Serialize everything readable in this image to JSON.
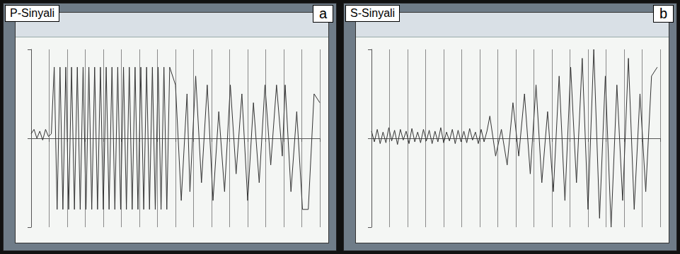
{
  "chart_data": [
    {
      "type": "line",
      "title": "P-Sinyali",
      "annotations": [
        "a"
      ],
      "color": "#333333",
      "grid": true,
      "tick_labels": false,
      "xlim": [
        0,
        100
      ],
      "xticks": [
        0,
        6.25,
        12.5,
        18.75,
        25,
        31.25,
        37.5,
        43.75,
        50,
        56.25,
        62.5,
        68.75,
        75,
        81.25,
        87.5,
        93.75,
        100
      ],
      "ylim": [
        -1,
        1
      ],
      "yticks": [
        -1,
        0,
        1
      ],
      "x": [
        0,
        1,
        2,
        3,
        4,
        5,
        6,
        7,
        8,
        9,
        10,
        11,
        12,
        13,
        14,
        15,
        16,
        17,
        18,
        19,
        20,
        21,
        22,
        23,
        24,
        25,
        26,
        27,
        28,
        29,
        30,
        31,
        32,
        33,
        34,
        35,
        36,
        37,
        38,
        39,
        40,
        41,
        42,
        43,
        44,
        45,
        46,
        47,
        48,
        50,
        52,
        54,
        55,
        57,
        59,
        61,
        63,
        65,
        67,
        69,
        71,
        73,
        75,
        77,
        79,
        81,
        83,
        85,
        87,
        88,
        90,
        92,
        94,
        96,
        98,
        100
      ],
      "values": [
        0.05,
        0.1,
        0,
        0.08,
        -0.02,
        0.1,
        0.02,
        0.05,
        0.8,
        -0.8,
        0.8,
        -0.8,
        0.8,
        -0.8,
        0.8,
        -0.8,
        0.8,
        -0.8,
        0.8,
        -0.8,
        0.8,
        -0.8,
        0.8,
        -0.8,
        0.8,
        -0.8,
        0.8,
        -0.8,
        0.8,
        -0.8,
        0.8,
        -0.8,
        0.8,
        -0.8,
        0.8,
        -0.8,
        0.8,
        -0.8,
        0.8,
        -0.8,
        0.8,
        -0.8,
        0.8,
        -0.8,
        0.8,
        -0.8,
        0.8,
        -0.8,
        0.8,
        0.6,
        -0.7,
        0.5,
        -0.6,
        0.7,
        -0.5,
        0.6,
        -0.7,
        0.3,
        -0.6,
        0.6,
        -0.4,
        0.5,
        -0.7,
        0.4,
        -0.5,
        0.6,
        -0.3,
        0.6,
        -0.2,
        0.6,
        -0.6,
        0.3,
        -0.8,
        -0.8,
        0.5,
        0.4
      ]
    },
    {
      "type": "line",
      "title": "S-Sinyali",
      "annotations": [
        "b"
      ],
      "color": "#333333",
      "grid": true,
      "tick_labels": false,
      "xlim": [
        0,
        100
      ],
      "xticks": [
        0,
        6.25,
        12.5,
        18.75,
        25,
        31.25,
        37.5,
        43.75,
        50,
        56.25,
        62.5,
        68.75,
        75,
        81.25,
        87.5,
        93.75,
        100
      ],
      "ylim": [
        -1,
        1
      ],
      "yticks": [
        -1,
        0,
        1
      ],
      "x": [
        0,
        1,
        2,
        3,
        4,
        5,
        6,
        7,
        8,
        9,
        10,
        11,
        12,
        13,
        14,
        15,
        16,
        17,
        18,
        19,
        20,
        21,
        22,
        23,
        24,
        25,
        26,
        27,
        28,
        29,
        30,
        31,
        32,
        33,
        34,
        35,
        36,
        37,
        38,
        39,
        40,
        41,
        43,
        45,
        47,
        49,
        51,
        53,
        55,
        57,
        59,
        61,
        63,
        65,
        67,
        69,
        71,
        73,
        75,
        77,
        79,
        81,
        83,
        85,
        87,
        89,
        91,
        93,
        95,
        97,
        99
      ],
      "values": [
        0.08,
        -0.04,
        0.1,
        -0.06,
        0.07,
        -0.05,
        0.12,
        -0.03,
        0.09,
        -0.07,
        0.1,
        -0.02,
        0.08,
        -0.06,
        0.11,
        -0.04,
        0.07,
        -0.05,
        0.1,
        -0.03,
        0.09,
        -0.06,
        0.08,
        -0.04,
        0.12,
        -0.05,
        0.07,
        -0.03,
        0.1,
        -0.06,
        0.09,
        -0.04,
        0.08,
        -0.05,
        0.11,
        -0.02,
        0.07,
        -0.06,
        0.1,
        -0.04,
        0.08,
        0.25,
        -0.2,
        0.1,
        -0.3,
        0.4,
        -0.2,
        0.5,
        -0.4,
        0.6,
        -0.5,
        0.3,
        -0.6,
        0.7,
        -0.7,
        0.8,
        -0.5,
        0.9,
        -0.8,
        1.0,
        -0.9,
        0.7,
        -1.0,
        0.6,
        -0.7,
        0.9,
        -0.8,
        0.5,
        -0.6,
        0.7,
        0.8
      ]
    }
  ]
}
